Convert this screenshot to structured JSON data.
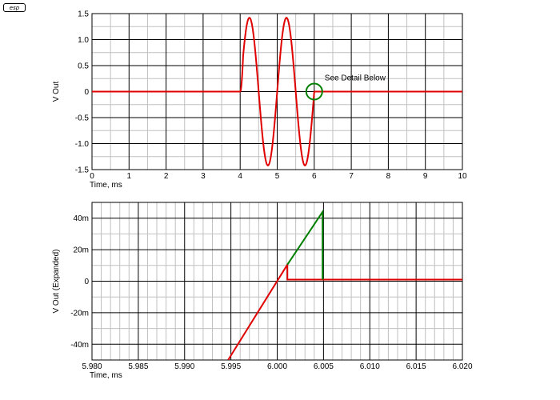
{
  "logo_text": "esp",
  "colors": {
    "waveform": "#e00000",
    "detail": "#008000",
    "grid_major": "#000000",
    "grid_minor": "#c0c0c0"
  },
  "chart_data": [
    {
      "type": "line",
      "xlabel": "Time, ms",
      "ylabel": "V Out",
      "xlim": [
        0,
        10
      ],
      "ylim": [
        -1.5,
        1.5
      ],
      "x_ticks": [
        0,
        1,
        2,
        3,
        4,
        5,
        6,
        7,
        8,
        9,
        10
      ],
      "x_tick_labels": [
        "0",
        "1",
        "2",
        "3",
        "4",
        "5",
        "6",
        "7",
        "8",
        "9",
        "10"
      ],
      "y_ticks": [
        1.5,
        1.0,
        0.5,
        0,
        -0.5,
        -1.0,
        -1.5
      ],
      "y_tick_labels": [
        "1.5",
        "1.0",
        "0.5",
        "0",
        "-0.5",
        "-1.0",
        "-1.5"
      ],
      "grid": true,
      "series": [
        {
          "style": "red",
          "x": [
            0,
            4.0,
            4.1,
            4.25,
            4.5,
            4.75,
            5.0,
            5.25,
            5.5,
            5.75,
            6.0,
            6.01,
            10
          ],
          "y": [
            0,
            0,
            0.95,
            1.42,
            0.05,
            -1.42,
            0.05,
            1.42,
            0.05,
            -1.42,
            -0.05,
            0,
            0
          ],
          "description_points": "burst of two cycles between 4 and 6 ms"
        }
      ],
      "annotation": {
        "text": "See Detail Below",
        "x": 6.0,
        "y": 0
      }
    },
    {
      "type": "line",
      "xlabel": "Time, ms",
      "ylabel": "V Out  (Expanded)",
      "xlim": [
        5.98,
        6.02
      ],
      "ylim": [
        -0.05,
        0.05
      ],
      "x_ticks": [
        5.98,
        5.985,
        5.99,
        5.995,
        6.0,
        6.005,
        6.01,
        6.015,
        6.02
      ],
      "x_tick_labels": [
        "5.980",
        "5.985",
        "5.990",
        "5.995",
        "6.000",
        "6.005",
        "6.010",
        "6.015",
        "6.020"
      ],
      "y_ticks": [
        0.04,
        0.02,
        0,
        -0.02,
        -0.04
      ],
      "y_tick_labels": [
        "40m",
        "20m",
        "0",
        "-20m",
        "-40m"
      ],
      "grid": true,
      "series": [
        {
          "style": "red",
          "x": [
            5.9947,
            6.0011,
            6.0011,
            6.02
          ],
          "y": [
            -0.05,
            0.0105,
            0.001,
            0.001
          ]
        },
        {
          "style": "green",
          "x": [
            6.0011,
            6.0049,
            6.0049
          ],
          "y": [
            0.0105,
            0.044,
            0.001
          ]
        }
      ]
    }
  ]
}
